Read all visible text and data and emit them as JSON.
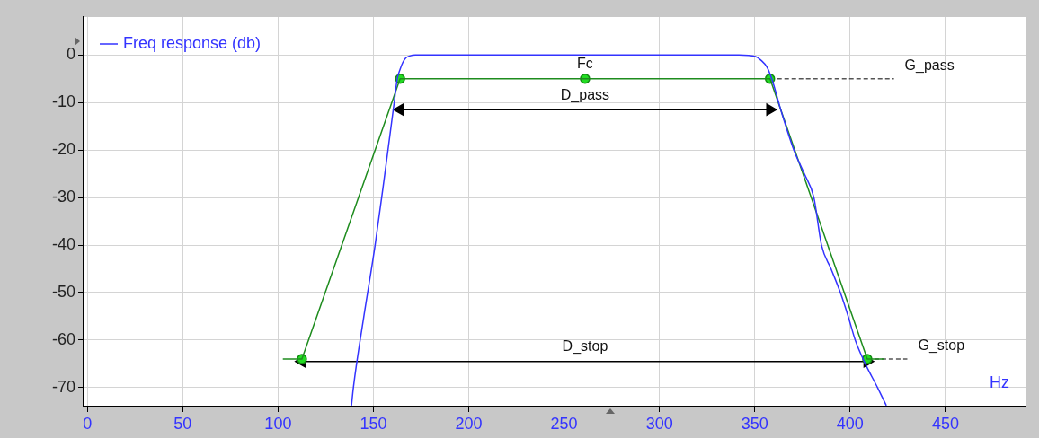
{
  "chart_data": {
    "type": "line",
    "xlabel": "Hz",
    "xlim": [
      -2,
      492
    ],
    "ylim": [
      -74,
      8
    ],
    "xticks": [
      0,
      50,
      100,
      150,
      200,
      250,
      300,
      350,
      400,
      450
    ],
    "yticks": [
      0,
      -10,
      -20,
      -30,
      -40,
      -50,
      -60,
      -70
    ],
    "grid": true,
    "legend": "top left",
    "marker": "none",
    "line_style": "solid",
    "series": [
      {
        "name": "Freq response (db)",
        "color": "#3333ff",
        "x": [
          138.5,
          139.5,
          145,
          150.9,
          156,
          160.9,
          162.5,
          164,
          165.5,
          167,
          169,
          172,
          250,
          341.7,
          350.4,
          353,
          356.5,
          359,
          364,
          370.6,
          376,
          381,
          385,
          390,
          394.9,
          399,
          402.7,
          408,
          414.4,
          419
        ],
        "values": [
          -73.8,
          -70,
          -55,
          -40,
          -25,
          -10,
          -5,
          -3,
          -1.5,
          -0.6,
          -0.2,
          0,
          0,
          0,
          -0.3,
          -1,
          -2.6,
          -5.1,
          -12,
          -20.1,
          -25,
          -30,
          -40,
          -45,
          -50,
          -55,
          -60,
          -65,
          -70,
          -73.8
        ]
      },
      {
        "color": "#1e8c1e",
        "x": [
          102.5,
          112.5,
          164,
          261,
          358,
          409,
          418
        ],
        "values": [
          -64,
          -64,
          -5,
          -5,
          -5,
          -64,
          -64
        ]
      },
      {
        "type": "scatter",
        "color": "#22dd22",
        "marker": "circle",
        "x": [
          112.5,
          164,
          261,
          358,
          409
        ],
        "values": [
          -64,
          -5,
          -5,
          -5,
          -64
        ]
      },
      {
        "color": "#555555",
        "line_style": "dashed",
        "x": [
          358,
          423
        ],
        "values": [
          -5,
          -5
        ]
      },
      {
        "color": "#555555",
        "line_style": "dashed",
        "x": [
          409,
          430
        ],
        "values": [
          -64,
          -64
        ]
      },
      {
        "color": "#000000",
        "marker": "triangle",
        "x": [
          164,
          358
        ],
        "values": [
          -11.5,
          -11.5
        ]
      },
      {
        "color": "#000000",
        "marker": "triangle",
        "x": [
          112.5,
          409
        ],
        "values": [
          -64.5,
          -64.5
        ]
      }
    ],
    "annotations": [
      {
        "text": "Fc",
        "x": 261,
        "y": -5
      },
      {
        "text": "D_pass",
        "x": 261,
        "y": -11.5
      },
      {
        "text": "G_pass",
        "x": 423,
        "y": -5
      },
      {
        "text": "D_stop",
        "x": 261,
        "y": -64.5
      },
      {
        "text": "G_stop",
        "x": 430,
        "y": -64
      }
    ]
  }
}
